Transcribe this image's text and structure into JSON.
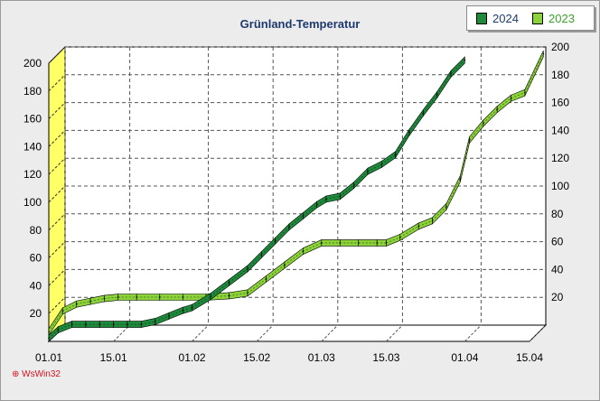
{
  "chart_data": {
    "type": "line",
    "title": "Grünland-Temperatur",
    "x_tick_labels": [
      "01.01",
      "15.01",
      "01.02",
      "15.02",
      "01.03",
      "15.03",
      "01.04",
      "15.04"
    ],
    "x_tick_days": [
      0,
      14,
      31,
      45,
      59,
      73,
      90,
      104
    ],
    "ylim": [
      0,
      200
    ],
    "y_ticks_left": [
      20,
      40,
      60,
      80,
      100,
      120,
      140,
      160,
      180,
      200
    ],
    "y_ticks_right": [
      20,
      40,
      60,
      80,
      100,
      120,
      140,
      160,
      180,
      200
    ],
    "grid": true,
    "legend_position": "top-right",
    "series": [
      {
        "name": "2024",
        "color": "#1e8a3c",
        "x": [
          "01.01",
          "03.01",
          "06.01",
          "09.01",
          "12.01",
          "15.01",
          "18.01",
          "21.01",
          "24.01",
          "27.01",
          "30.01",
          "01.02",
          "05.02",
          "09.02",
          "13.02",
          "16.02",
          "19.02",
          "22.02",
          "25.02",
          "28.02",
          "02.03",
          "05.03",
          "08.03",
          "11.03",
          "14.03",
          "17.03",
          "20.03",
          "23.03",
          "26.03",
          "29.03",
          "01.04"
        ],
        "values": [
          0,
          6,
          10,
          10,
          10,
          10,
          10,
          10,
          12,
          16,
          20,
          22,
          30,
          40,
          50,
          60,
          70,
          80,
          88,
          96,
          100,
          102,
          110,
          120,
          125,
          132,
          148,
          162,
          175,
          190,
          200
        ]
      },
      {
        "name": "2023",
        "color": "#8cd23a",
        "x": [
          "01.01",
          "04.01",
          "07.01",
          "10.01",
          "13.01",
          "16.01",
          "20.01",
          "25.01",
          "30.01",
          "04.02",
          "09.02",
          "13.02",
          "17.02",
          "21.02",
          "25.02",
          "01.03",
          "05.03",
          "09.03",
          "13.03",
          "15.03",
          "18.03",
          "22.03",
          "25.03",
          "28.03",
          "31.03",
          "02.04",
          "05.04",
          "08.04",
          "11.04",
          "14.04",
          "18.04"
        ],
        "values": [
          0,
          15,
          20,
          22,
          24,
          25,
          25,
          25,
          25,
          25,
          26,
          28,
          38,
          48,
          58,
          64,
          64,
          64,
          64,
          64,
          68,
          76,
          80,
          90,
          110,
          138,
          150,
          160,
          168,
          172,
          200
        ]
      }
    ]
  },
  "legend": [
    {
      "label": "2024",
      "color": "#1e8a3c"
    },
    {
      "label": "2023",
      "color": "#8cd23a"
    }
  ],
  "watermark": "⊕ WsWin32"
}
